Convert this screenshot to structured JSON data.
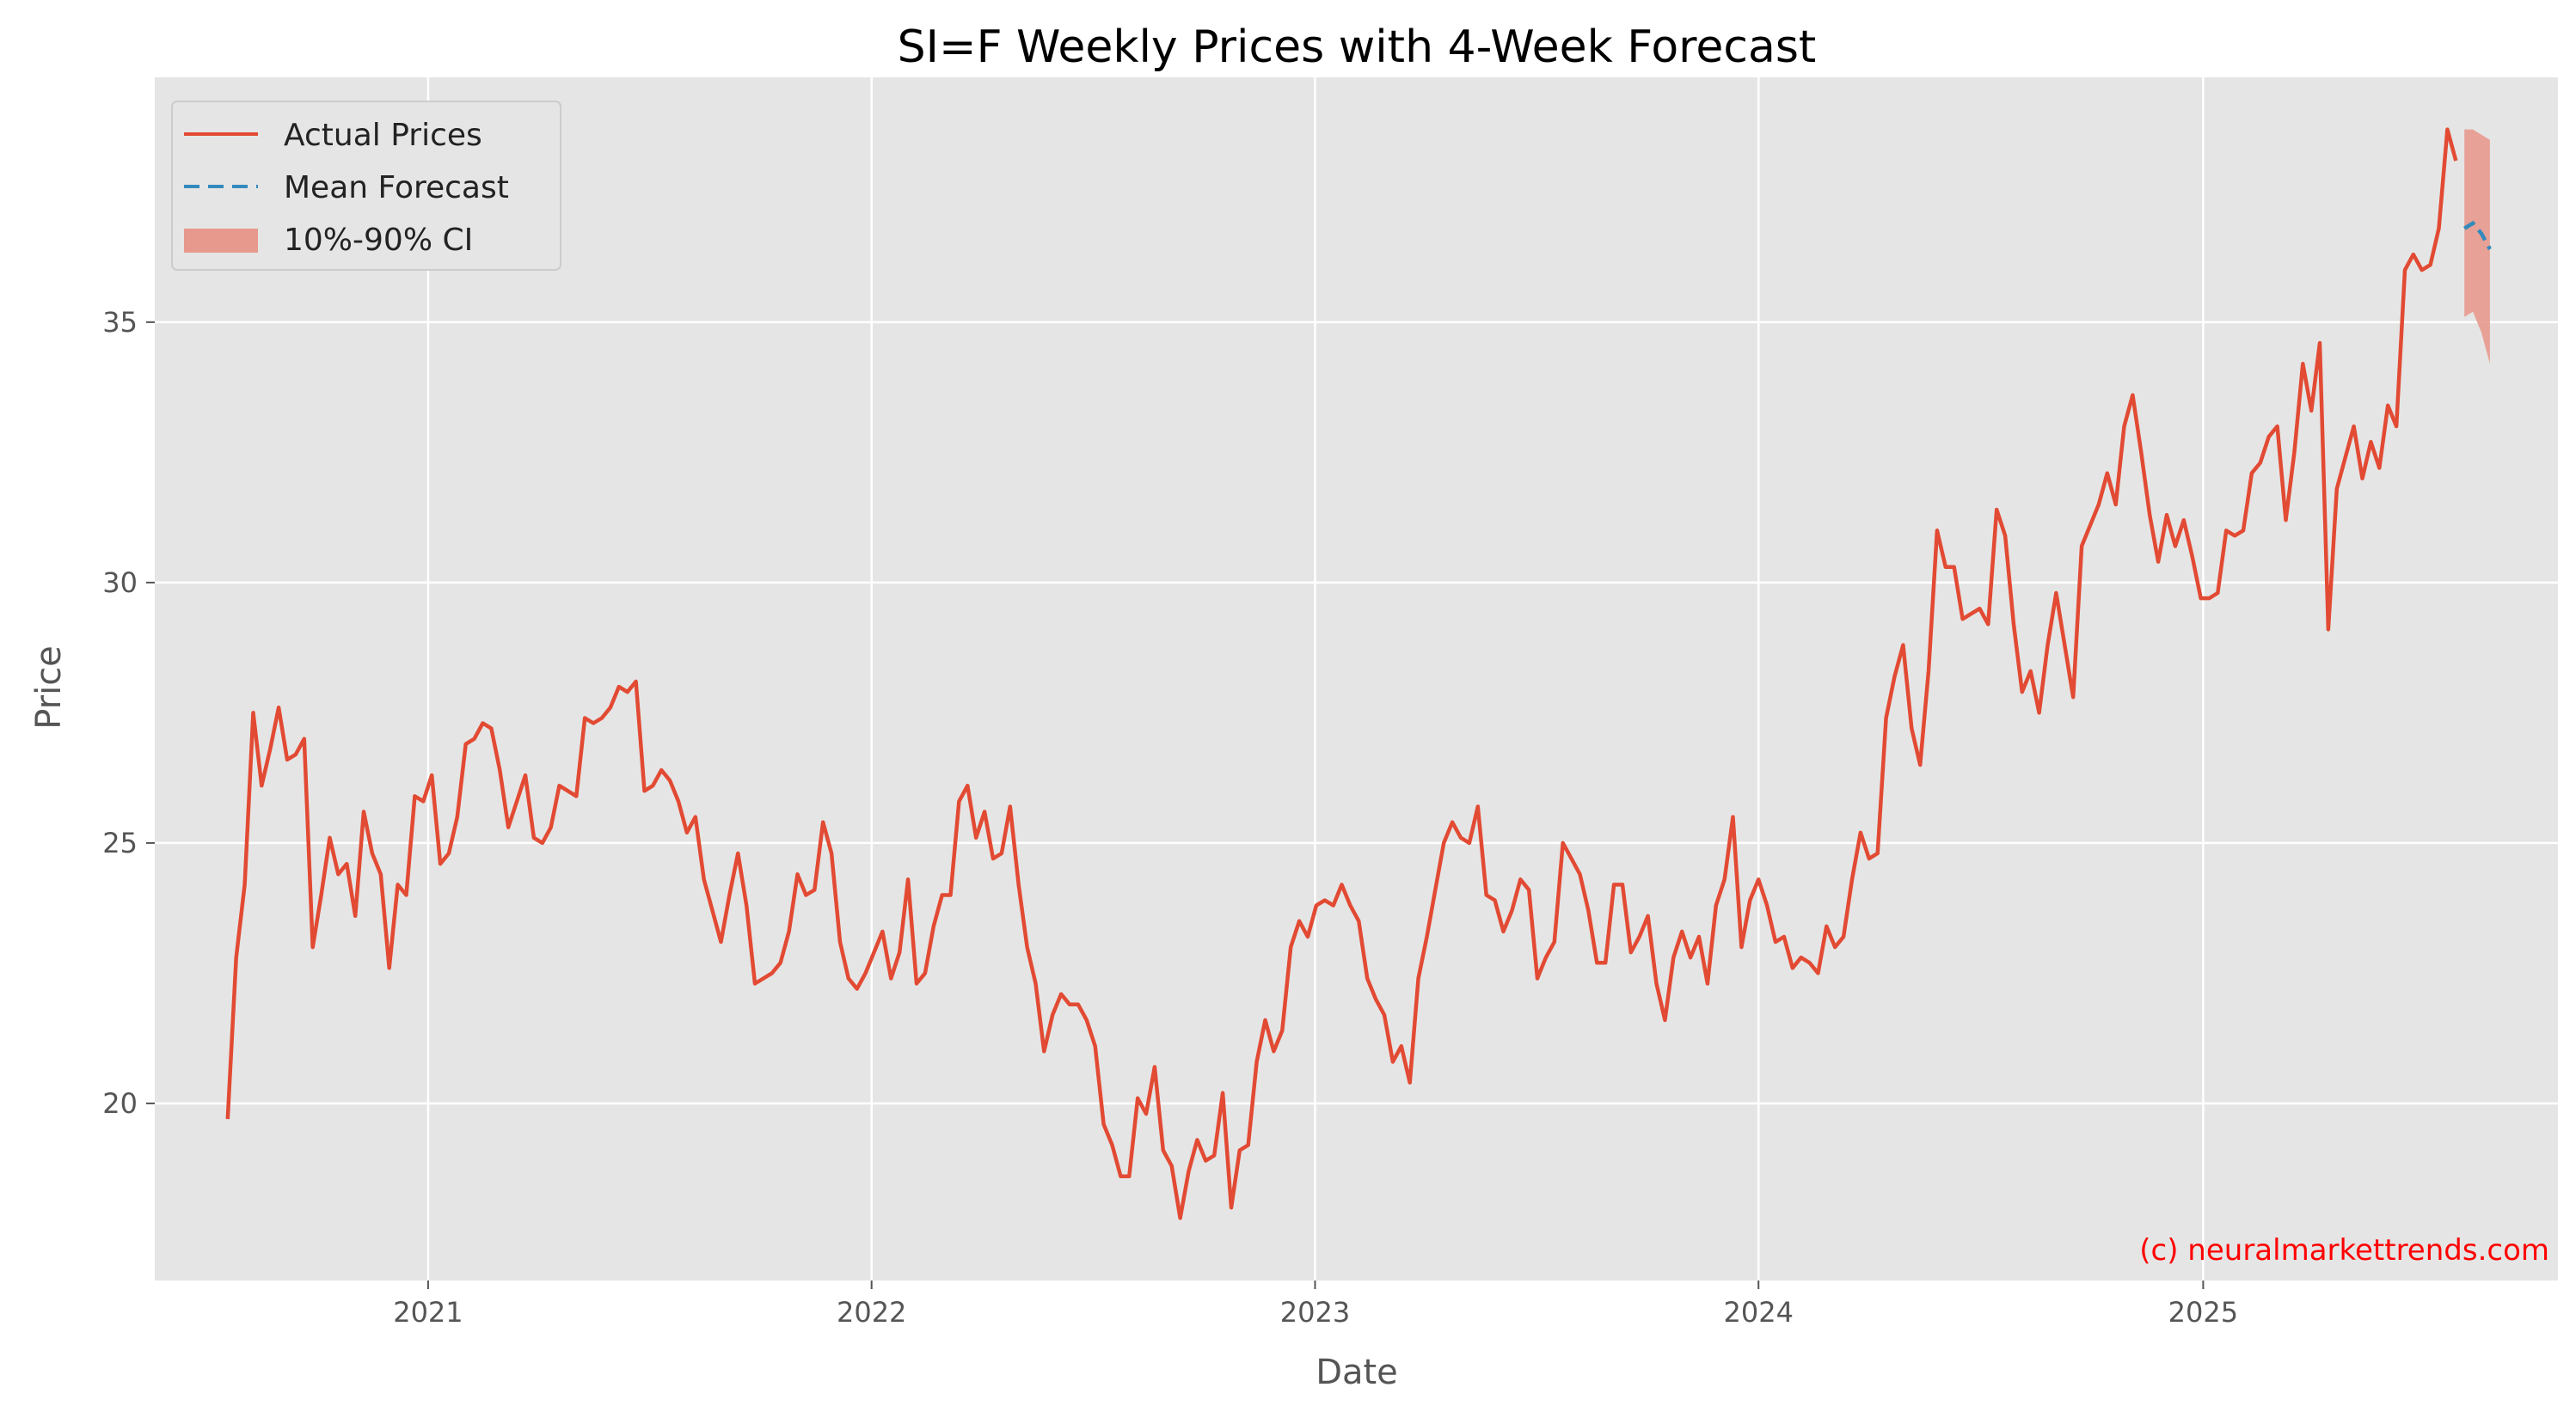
{
  "chart_data": {
    "type": "line",
    "title": "SI=F Weekly Prices with 4-Week Forecast",
    "xlabel": "Date",
    "ylabel": "Price",
    "x_range": [
      "2020-05-21",
      "2025-10-20"
    ],
    "ylim": [
      16.6,
      39.7
    ],
    "x_ticks": [
      "2021-01-01",
      "2022-01-01",
      "2023-01-01",
      "2024-01-01",
      "2025-01-01"
    ],
    "x_tick_labels": [
      "2021",
      "2022",
      "2023",
      "2024",
      "2025"
    ],
    "y_ticks": [
      20,
      25,
      30,
      35
    ],
    "y_tick_labels": [
      "20",
      "25",
      "30",
      "35"
    ],
    "grid": true,
    "legend_position": "top-left",
    "watermark": "(c) neuralmarkettrends.com",
    "colors": {
      "actual": "#e24a33",
      "forecast": "#348abd",
      "ci": "#e8998d",
      "plot_bg": "#e5e5e5",
      "grid": "#ffffff"
    },
    "series": [
      {
        "name": "Actual Prices",
        "style": "solid",
        "start_date": "2020-07-20",
        "interval_days": 7,
        "values": [
          19.7,
          22.8,
          24.2,
          27.5,
          26.1,
          26.8,
          27.6,
          26.6,
          26.7,
          27.0,
          23.0,
          24.0,
          25.1,
          24.4,
          24.6,
          23.6,
          25.6,
          24.8,
          24.4,
          22.6,
          24.2,
          24.0,
          25.9,
          25.8,
          26.3,
          24.6,
          24.8,
          25.5,
          26.9,
          27.0,
          27.3,
          27.2,
          26.4,
          25.3,
          25.8,
          26.3,
          25.1,
          25.0,
          25.3,
          26.1,
          26.0,
          25.9,
          27.4,
          27.3,
          27.4,
          27.6,
          28.0,
          27.9,
          28.1,
          26.0,
          26.1,
          26.4,
          26.2,
          25.8,
          25.2,
          25.5,
          24.3,
          23.7,
          23.1,
          24.0,
          24.8,
          23.8,
          22.3,
          22.4,
          22.5,
          22.7,
          23.3,
          24.4,
          24.0,
          24.1,
          25.4,
          24.8,
          23.1,
          22.4,
          22.2,
          22.5,
          22.9,
          23.3,
          22.4,
          22.9,
          24.3,
          22.3,
          22.5,
          23.4,
          24.0,
          24.0,
          25.8,
          26.1,
          25.1,
          25.6,
          24.7,
          24.8,
          25.7,
          24.2,
          23.0,
          22.3,
          21.0,
          21.7,
          22.1,
          21.9,
          21.9,
          21.6,
          21.1,
          19.6,
          19.2,
          18.6,
          18.6,
          20.1,
          19.8,
          20.7,
          19.1,
          18.8,
          17.8,
          18.7,
          19.3,
          18.9,
          19.0,
          20.2,
          18.0,
          19.1,
          19.2,
          20.8,
          21.6,
          21.0,
          21.4,
          23.0,
          23.5,
          23.2,
          23.8,
          23.9,
          23.8,
          24.2,
          23.8,
          23.5,
          22.4,
          22.0,
          21.7,
          20.8,
          21.1,
          20.4,
          22.4,
          23.2,
          24.1,
          25.0,
          25.4,
          25.1,
          25.0,
          25.7,
          24.0,
          23.9,
          23.3,
          23.7,
          24.3,
          24.1,
          22.4,
          22.8,
          23.1,
          25.0,
          24.7,
          24.4,
          23.7,
          22.7,
          22.7,
          24.2,
          24.2,
          22.9,
          23.2,
          23.6,
          22.3,
          21.6,
          22.8,
          23.3,
          22.8,
          23.2,
          22.3,
          23.8,
          24.3,
          25.5,
          23.0,
          23.9,
          24.3,
          23.8,
          23.1,
          23.2,
          22.6,
          22.8,
          22.7,
          22.5,
          23.4,
          23.0,
          23.2,
          24.3,
          25.2,
          24.7,
          24.8,
          27.4,
          28.2,
          28.8,
          27.2,
          26.5,
          28.3,
          31.0,
          30.3,
          30.3,
          29.3,
          29.4,
          29.5,
          29.2,
          31.4,
          30.9,
          29.2,
          27.9,
          28.3,
          27.5,
          28.8,
          29.8,
          28.8,
          27.8,
          30.7,
          31.1,
          31.5,
          32.1,
          31.5,
          33.0,
          33.6,
          32.5,
          31.3,
          30.4,
          31.3,
          30.7,
          31.2,
          30.5,
          29.7,
          29.7,
          29.8,
          31.0,
          30.9,
          31.0,
          32.1,
          32.3,
          32.8,
          33.0,
          31.2,
          32.5,
          34.2,
          33.3,
          34.6,
          29.1,
          31.8,
          32.4,
          33.0,
          32.0,
          32.7,
          32.2,
          33.4,
          33.0,
          36.0,
          36.3,
          36.0,
          36.1,
          36.8,
          38.7,
          38.1
        ]
      },
      {
        "name": "Mean Forecast",
        "style": "dashed",
        "dates": [
          "2025-08-04",
          "2025-08-11",
          "2025-08-18",
          "2025-08-25"
        ],
        "values": [
          36.8,
          36.9,
          36.7,
          36.4
        ]
      },
      {
        "name": "10%-90% CI",
        "style": "band",
        "dates": [
          "2025-08-04",
          "2025-08-11",
          "2025-08-18",
          "2025-08-25"
        ],
        "lower": [
          35.1,
          35.2,
          34.8,
          34.2
        ],
        "upper": [
          38.7,
          38.7,
          38.6,
          38.5
        ]
      }
    ]
  }
}
